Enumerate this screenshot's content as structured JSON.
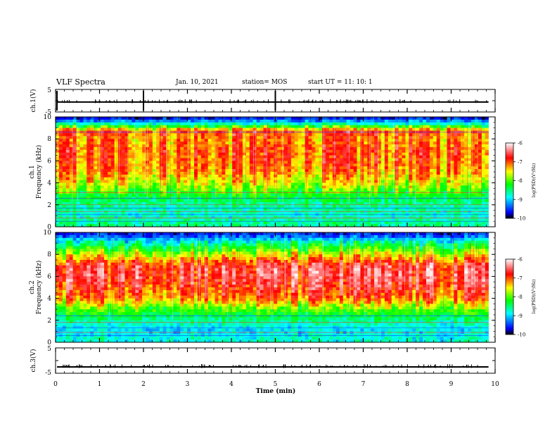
{
  "header": {
    "title": "VLF Spectra",
    "date": "Jan. 10, 2021",
    "station": "station= MOS",
    "start": "start  UT =   11: 10: 1"
  },
  "chart_data": [
    {
      "type": "line",
      "panel": "ch.1 waveform",
      "ylabel": "ch.1(V)",
      "ylim": [
        -5,
        5
      ],
      "yticks": [
        5,
        -5
      ],
      "baseline": -0.6,
      "xlim": [
        0,
        10
      ]
    },
    {
      "type": "heatmap",
      "panel": "ch.1 spectrogram",
      "ylabel": "ch.1\nFrequency (kHz)",
      "ylim": [
        0,
        10
      ],
      "yticks": [
        0,
        2,
        4,
        6,
        8,
        10
      ],
      "xlim": [
        0,
        9.85
      ],
      "z_range": [
        -10,
        -6
      ],
      "colorbar": {
        "label": "log(PSD)(V²/Hz)",
        "ticks": [
          -6,
          -7,
          -8,
          -9,
          -10
        ]
      },
      "frequency_profile_log_psd": [
        {
          "f": 0.5,
          "z": -8.6
        },
        {
          "f": 1.0,
          "z": -8.8
        },
        {
          "f": 2.0,
          "z": -8.6
        },
        {
          "f": 3.0,
          "z": -8.2
        },
        {
          "f": 4.0,
          "z": -7.6
        },
        {
          "f": 5.0,
          "z": -7.2
        },
        {
          "f": 6.0,
          "z": -7.1
        },
        {
          "f": 7.0,
          "z": -7.0
        },
        {
          "f": 8.0,
          "z": -7.2
        },
        {
          "f": 8.7,
          "z": -6.9
        },
        {
          "f": 9.3,
          "z": -8.6
        },
        {
          "f": 9.8,
          "z": -9.6
        }
      ],
      "tone_lines_khz": [
        0.5,
        0.8,
        1.1,
        1.4,
        1.7,
        2.0,
        2.6,
        3.1,
        8.6
      ]
    },
    {
      "type": "heatmap",
      "panel": "ch.2 spectrogram",
      "ylabel": "ch.2\nFrequency (kHz)",
      "ylim": [
        0,
        10
      ],
      "yticks": [
        0,
        2,
        4,
        6,
        8,
        10
      ],
      "xlim": [
        0,
        9.85
      ],
      "z_range": [
        -10,
        -6
      ],
      "colorbar": {
        "label": "log(PSD)(V²/Hz)",
        "ticks": [
          -6,
          -7,
          -8,
          -9,
          -10
        ]
      },
      "frequency_profile_log_psd": [
        {
          "f": 0.5,
          "z": -8.8
        },
        {
          "f": 1.0,
          "z": -9.0
        },
        {
          "f": 2.0,
          "z": -8.6
        },
        {
          "f": 3.0,
          "z": -8.0
        },
        {
          "f": 4.0,
          "z": -7.1
        },
        {
          "f": 5.0,
          "z": -6.8
        },
        {
          "f": 6.0,
          "z": -6.6
        },
        {
          "f": 7.0,
          "z": -6.7
        },
        {
          "f": 8.0,
          "z": -7.6
        },
        {
          "f": 9.0,
          "z": -8.6
        },
        {
          "f": 9.8,
          "z": -9.6
        }
      ],
      "tone_lines_khz": [
        0.6,
        0.9,
        1.3,
        1.8,
        2.4
      ]
    },
    {
      "type": "line",
      "panel": "ch.3 waveform",
      "ylabel": "ch.3(V)",
      "ylim": [
        -5,
        5
      ],
      "yticks": [
        5,
        -5
      ],
      "baseline": -2.5,
      "xlim": [
        0,
        10
      ]
    }
  ],
  "x_axis": {
    "label": "Time  (min)",
    "range": [
      0,
      10
    ],
    "ticks": [
      0,
      1,
      2,
      3,
      4,
      5,
      6,
      7,
      8,
      9,
      10
    ]
  },
  "colors": {
    "colormap": [
      "#ffffff",
      "#ff0000",
      "#ffff00",
      "#00ff00",
      "#00ffff",
      "#0000ff",
      "#000000"
    ]
  }
}
